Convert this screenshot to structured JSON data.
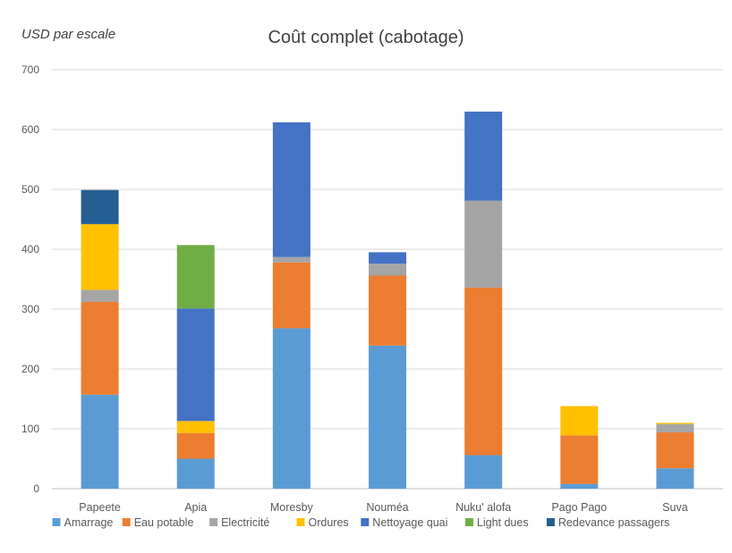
{
  "chart_data": {
    "type": "bar",
    "stacked": true,
    "title": "Coût complet (cabotage)",
    "unit_label": "USD par escale",
    "xlabel": "",
    "ylabel": "",
    "ylim": [
      0,
      700
    ],
    "yticks": [
      "0",
      "100",
      "200",
      "300",
      "400",
      "500",
      "600",
      "700"
    ],
    "grid": true,
    "legend_position": "bottom",
    "categories": [
      "Papeete",
      "Apia",
      "Moresby",
      "Nouméa",
      "Nuku' alofa",
      "Pago Pago",
      "Suva"
    ],
    "series": [
      {
        "name": "Amarrage",
        "color": "#5B9BD5",
        "values": [
          157,
          50,
          268,
          239,
          56,
          8,
          34
        ]
      },
      {
        "name": "Eau potable",
        "color": "#ED7D31",
        "values": [
          155,
          43,
          110,
          117,
          280,
          81,
          60
        ]
      },
      {
        "name": "Electricité",
        "color": "#A5A5A5",
        "values": [
          20,
          0,
          9,
          20,
          145,
          0,
          14
        ]
      },
      {
        "name": "Ordures",
        "color": "#FFC000",
        "values": [
          110,
          20,
          0,
          0,
          0,
          49,
          2
        ]
      },
      {
        "name": "Nettoyage quai",
        "color": "#4472C4",
        "values": [
          0,
          188,
          225,
          19,
          149,
          0,
          0
        ]
      },
      {
        "name": "Light dues",
        "color": "#70AD47",
        "values": [
          0,
          106,
          0,
          0,
          0,
          0,
          0
        ]
      },
      {
        "name": "Redevance passagers",
        "color": "#255E91",
        "values": [
          57,
          0,
          0,
          0,
          0,
          0,
          0
        ]
      }
    ]
  }
}
